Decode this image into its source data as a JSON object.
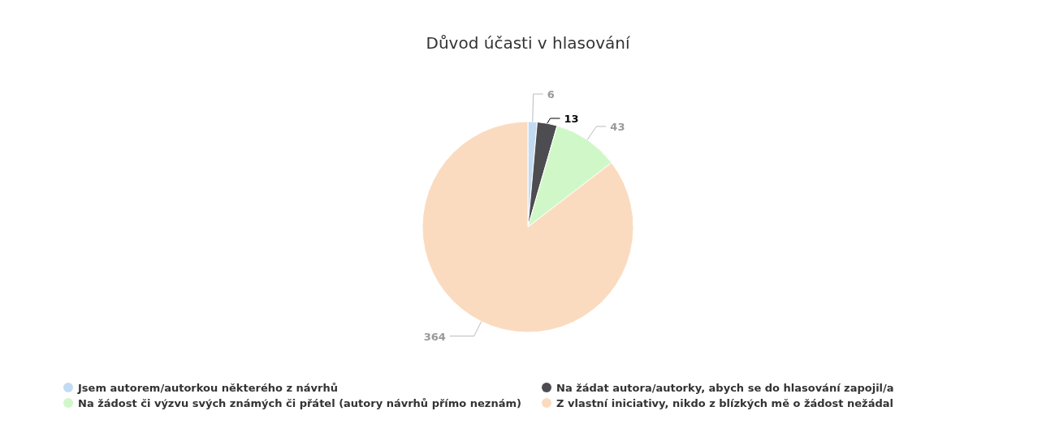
{
  "chart_data": {
    "type": "pie",
    "title": "Důvod účasti v hlasování",
    "categories": [
      "Jsem autorem/autorkou některého z návrhů",
      "Na žádat autora/autorky, abych se do hlasování zapojil/a",
      "Na žádost či výzvu svých známých či přátel (autory návrhů přímo neznám)",
      "Z vlastní iniciativy, nikdo z blízkých mě o žádost nežádal"
    ],
    "values": [
      6,
      13,
      43,
      364
    ],
    "colors": [
      "#c3dbf2",
      "#4c4c51",
      "#d0f7c8",
      "#fbdbbf"
    ],
    "data_labels": true,
    "legend": "bottom"
  }
}
